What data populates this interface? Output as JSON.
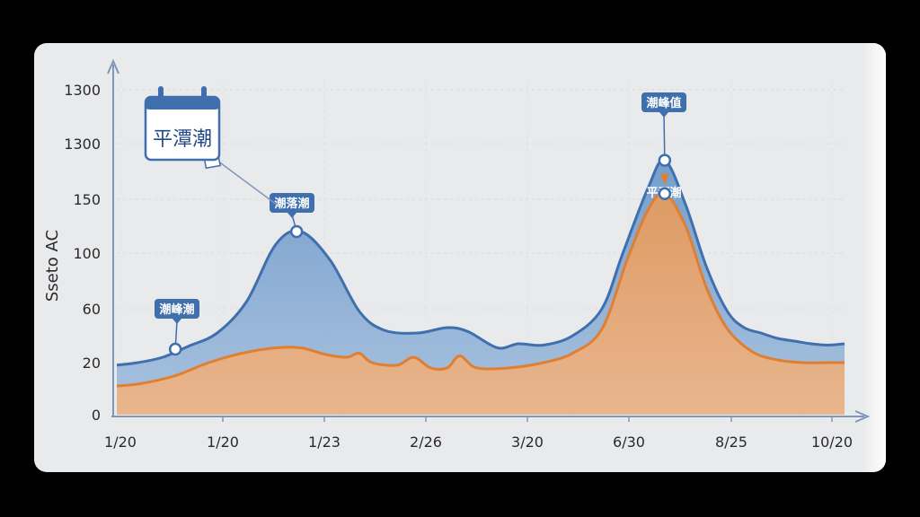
{
  "colors": {
    "background": "#000000",
    "card": "#e9eaec",
    "blue_fill": "#7aa2ce",
    "blue_line": "#3f6fad",
    "orange_fill": "#e7a16b",
    "orange_line": "#e07f2f",
    "callout": "#3f6fad",
    "axis": "#7f97b8"
  },
  "calendar_badge": {
    "icon": "calendar-icon",
    "label": "平潭潮"
  },
  "chart_data": {
    "type": "area",
    "ylabel": "Sseto AC",
    "y_ticks": [
      "1300",
      "1300",
      "150",
      "100",
      "60",
      "20",
      "0"
    ],
    "x_ticks": [
      "1/20",
      "1/20",
      "1/23",
      "2/26",
      "3/20",
      "6/30",
      "8/25",
      "10/20"
    ],
    "grid": true,
    "series": [
      {
        "key": "blue",
        "values": [
          [
            0.0,
            19
          ],
          [
            0.25,
            20
          ],
          [
            0.55,
            24
          ],
          [
            0.85,
            32
          ],
          [
            1.2,
            42
          ],
          [
            1.55,
            65
          ],
          [
            1.9,
            108
          ],
          [
            2.2,
            120
          ],
          [
            2.55,
            95
          ],
          [
            2.9,
            58
          ],
          [
            3.2,
            44
          ],
          [
            3.6,
            42
          ],
          [
            3.95,
            46
          ],
          [
            4.2,
            43
          ],
          [
            4.55,
            31
          ],
          [
            4.8,
            34
          ],
          [
            5.1,
            33
          ],
          [
            5.45,
            40
          ],
          [
            5.8,
            60
          ],
          [
            6.05,
            100
          ],
          [
            6.35,
            160
          ],
          [
            6.55,
            185
          ],
          [
            6.8,
            145
          ],
          [
            7.05,
            90
          ],
          [
            7.3,
            58
          ],
          [
            7.5,
            46
          ],
          [
            7.7,
            42
          ],
          [
            7.9,
            38
          ],
          [
            8.1,
            36
          ],
          [
            8.3,
            34
          ],
          [
            8.5,
            33
          ],
          [
            8.7,
            34
          ]
        ]
      },
      {
        "key": "orange",
        "values": [
          [
            0.0,
            11
          ],
          [
            0.3,
            12
          ],
          [
            0.7,
            15
          ],
          [
            1.1,
            20
          ],
          [
            1.5,
            27
          ],
          [
            1.9,
            31
          ],
          [
            2.2,
            31
          ],
          [
            2.5,
            26
          ],
          [
            2.75,
            24
          ],
          [
            2.9,
            27
          ],
          [
            3.05,
            20
          ],
          [
            3.35,
            19
          ],
          [
            3.55,
            24
          ],
          [
            3.75,
            18
          ],
          [
            3.95,
            18
          ],
          [
            4.1,
            25
          ],
          [
            4.3,
            18
          ],
          [
            4.7,
            18
          ],
          [
            5.1,
            20
          ],
          [
            5.45,
            27
          ],
          [
            5.8,
            45
          ],
          [
            6.1,
            95
          ],
          [
            6.35,
            140
          ],
          [
            6.55,
            155
          ],
          [
            6.8,
            125
          ],
          [
            7.05,
            75
          ],
          [
            7.3,
            45
          ],
          [
            7.6,
            28
          ],
          [
            7.9,
            22
          ],
          [
            8.2,
            20
          ],
          [
            8.5,
            20
          ],
          [
            8.7,
            20
          ]
        ]
      }
    ],
    "markers": [
      {
        "label": "潮峰潮",
        "x": 0.7,
        "y": 30,
        "series": "blue"
      },
      {
        "label": "潮落潮",
        "x": 2.15,
        "y": 120,
        "series": "blue"
      },
      {
        "label": "潮峰值",
        "x": 6.55,
        "y": 185,
        "series": "blue"
      },
      {
        "label": "平潭潮",
        "x": 6.55,
        "y": 155,
        "series": "orange"
      }
    ]
  }
}
